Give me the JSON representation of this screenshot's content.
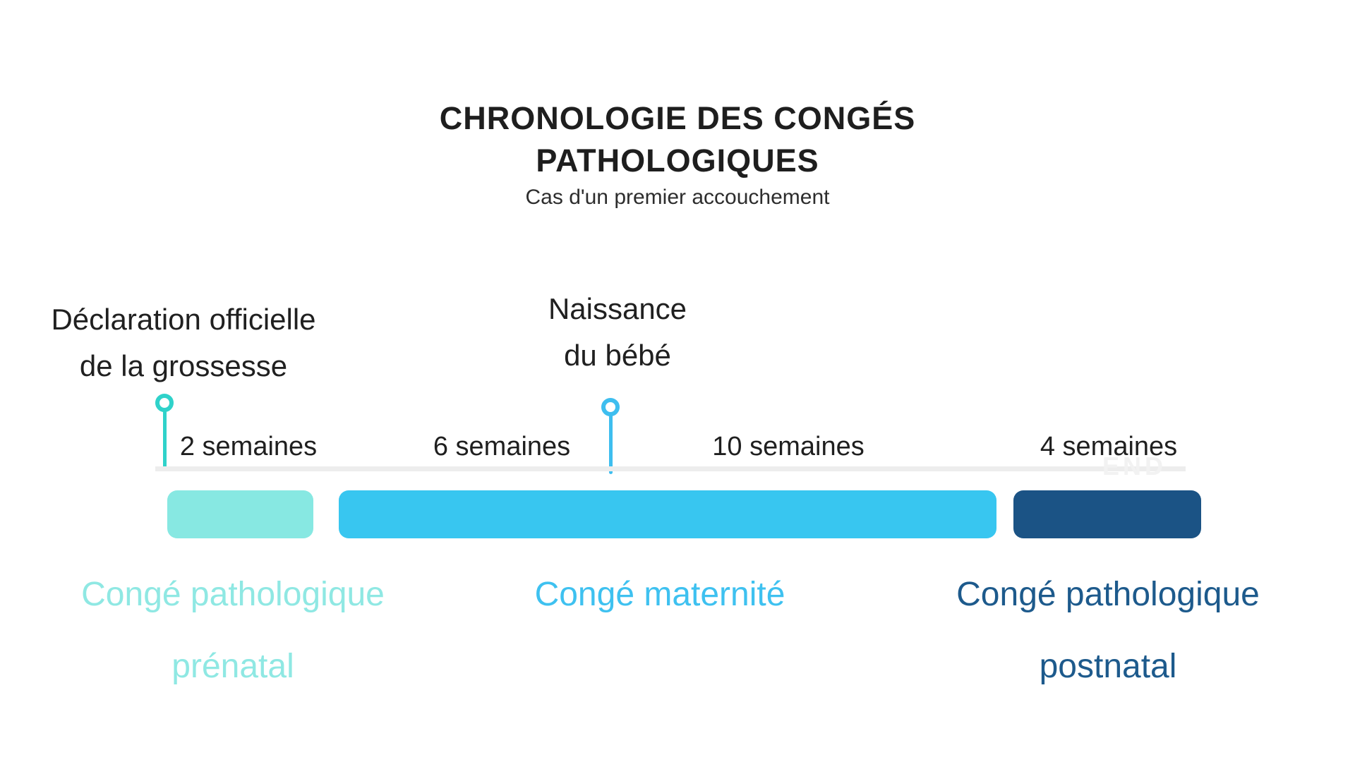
{
  "header": {
    "title_line1": "CHRONOLOGIE DES CONGÉS",
    "title_line2": "PATHOLOGIQUES",
    "subtitle": "Cas d'un premier accouchement"
  },
  "annotations": {
    "declaration": {
      "line1": "Déclaration officielle",
      "line2": "de la grossesse"
    },
    "naissance": {
      "line1": "Naissance",
      "line2": "du bébé"
    }
  },
  "timeline": {
    "end_marker": "END",
    "segments": [
      {
        "duration": "2 semaines",
        "weeks": 2,
        "leave": "Congé pathologique prénatal",
        "color": "#87e8e2"
      },
      {
        "duration": "6 semaines",
        "weeks": 6,
        "leave": "Congé maternité",
        "color": "#38c6f0"
      },
      {
        "duration": "10 semaines",
        "weeks": 10,
        "leave": "Congé maternité",
        "color": "#38c6f0"
      },
      {
        "duration": "4 semaines",
        "weeks": 4,
        "leave": "Congé pathologique postnatal",
        "color": "#1b5385"
      }
    ],
    "markers": [
      {
        "label": "Déclaration officielle de la grossesse",
        "color": "#2fd2ca"
      },
      {
        "label": "Naissance du bébé",
        "color": "#3ebeef"
      }
    ]
  },
  "legend": {
    "prenatal": {
      "line1": "Congé pathologique",
      "line2": "prénatal",
      "color": "#8fe8e3"
    },
    "maternite": {
      "line1": "Congé maternité",
      "color": "#3ec1f0"
    },
    "postnatal": {
      "line1": "Congé pathologique",
      "line2": "postnatal",
      "color": "#1d5a8c"
    }
  },
  "colors": {
    "background": "#ffffff",
    "baseline_gray": "#ededed",
    "text_dark": "#1f1f1f",
    "teal_pin": "#2fd2ca",
    "sky_pin": "#3ebeef",
    "bar_prenatal": "#87e8e2",
    "bar_maternite": "#38c6f0",
    "bar_postnatal": "#1b5385"
  }
}
